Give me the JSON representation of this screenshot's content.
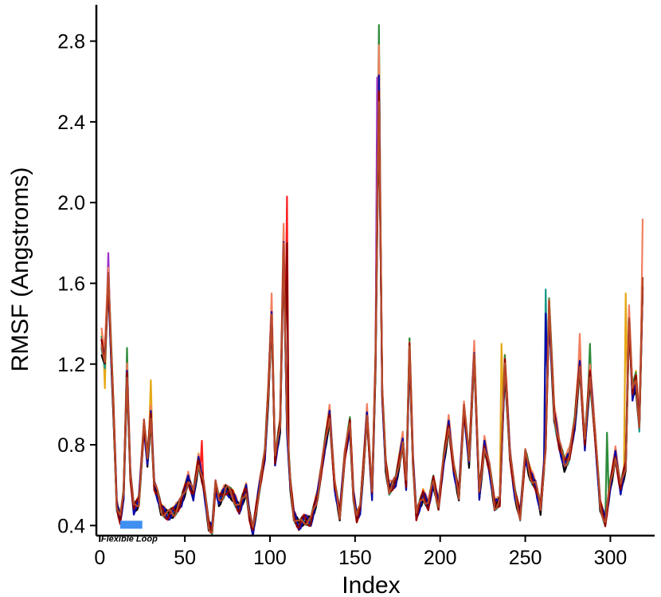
{
  "chart_data": {
    "type": "line",
    "title": "",
    "xlabel": "Index",
    "ylabel": "RMSF (Angstroms)",
    "xlim": [
      -2,
      326
    ],
    "ylim": [
      0.35,
      2.98
    ],
    "x_ticks": [
      0,
      50,
      100,
      150,
      200,
      250,
      300
    ],
    "x_tick_labels": [
      "0",
      "50",
      "100",
      "150",
      "200",
      "250",
      "300"
    ],
    "y_ticks": [
      0.4,
      0.8,
      1.2,
      1.6,
      2.0,
      2.4,
      2.8
    ],
    "y_tick_labels": [
      "0.4",
      "0.8",
      "1.2",
      "1.6",
      "2.0",
      "2.4",
      "2.8"
    ],
    "grid": false,
    "legend": "none",
    "annotation": {
      "text": "Flexible Loop",
      "x_range": [
        12,
        25
      ],
      "y": 0.4,
      "color": "#3f8ff0"
    },
    "base_profile": {
      "x": [
        1,
        3,
        5,
        8,
        10,
        12,
        14,
        16,
        18,
        20,
        23,
        26,
        28,
        30,
        32,
        34,
        36,
        40,
        44,
        48,
        52,
        55,
        58,
        61,
        64,
        66,
        68,
        70,
        74,
        78,
        82,
        86,
        88,
        90,
        94,
        97,
        99,
        101,
        103,
        106,
        108,
        110,
        112,
        114,
        117,
        120,
        124,
        128,
        132,
        135,
        138,
        141,
        144,
        147,
        149,
        151,
        153,
        155,
        157,
        160,
        162,
        164,
        166,
        168,
        170,
        174,
        178,
        180,
        182,
        184,
        186,
        190,
        193,
        196,
        199,
        202,
        205,
        208,
        211,
        214,
        217,
        220,
        223,
        226,
        229,
        232,
        235,
        238,
        241,
        244,
        247,
        250,
        253,
        256,
        259,
        262,
        264,
        267,
        270,
        273,
        276,
        279,
        282,
        285,
        288,
        291,
        294,
        297,
        300,
        303,
        306,
        309,
        311,
        313,
        315,
        317,
        319
      ],
      "y": [
        1.3,
        1.22,
        1.62,
        0.98,
        0.5,
        0.43,
        0.55,
        1.15,
        0.65,
        0.48,
        0.52,
        0.9,
        0.72,
        0.95,
        0.6,
        0.55,
        0.48,
        0.45,
        0.47,
        0.52,
        0.63,
        0.55,
        0.72,
        0.6,
        0.4,
        0.38,
        0.6,
        0.52,
        0.58,
        0.55,
        0.48,
        0.58,
        0.45,
        0.37,
        0.6,
        0.75,
        1.05,
        1.45,
        0.72,
        0.9,
        1.8,
        0.88,
        0.6,
        0.45,
        0.4,
        0.43,
        0.42,
        0.55,
        0.78,
        0.95,
        0.6,
        0.45,
        0.75,
        0.9,
        0.55,
        0.44,
        0.48,
        0.7,
        0.95,
        0.55,
        1.2,
        2.55,
        1.05,
        0.7,
        0.58,
        0.62,
        0.82,
        0.6,
        1.28,
        0.72,
        0.45,
        0.55,
        0.5,
        0.62,
        0.5,
        0.72,
        0.9,
        0.68,
        0.55,
        0.98,
        0.72,
        1.25,
        0.55,
        0.8,
        0.68,
        0.5,
        0.52,
        1.2,
        0.75,
        0.55,
        0.45,
        0.75,
        0.65,
        0.6,
        0.48,
        0.8,
        1.48,
        0.95,
        0.8,
        0.7,
        0.75,
        0.9,
        1.2,
        0.8,
        1.15,
        0.85,
        0.5,
        0.42,
        0.6,
        0.75,
        0.58,
        0.7,
        1.42,
        1.05,
        1.12,
        0.9,
        1.6
      ]
    },
    "series": [
      {
        "color": "#e6a817",
        "amp": 1.04,
        "peaks": {
          "164": 2.8,
          "309": 1.55,
          "236": 1.3,
          "30": 1.12,
          "3": 1.08
        }
      },
      {
        "color": "#2e8b3a",
        "amp": 1.03,
        "peaks": {
          "164": 2.88,
          "16": 1.28,
          "288": 1.3,
          "298": 0.86
        }
      },
      {
        "color": "#9b30c8",
        "amp": 1.0,
        "peaks": {
          "5": 1.75,
          "163": 2.62
        }
      },
      {
        "color": "#f08060",
        "amp": 1.05,
        "peaks": {
          "164": 2.78,
          "319": 1.92,
          "101": 1.55,
          "1": 1.38,
          "282": 1.35
        }
      },
      {
        "color": "#ff2020",
        "amp": 1.0,
        "peaks": {
          "110": 2.03,
          "60": 0.82,
          "164": 2.45
        }
      },
      {
        "color": "#1a9a8a",
        "amp": 0.98,
        "peaks": {
          "262": 1.57,
          "164": 2.5
        }
      },
      {
        "color": "#000000",
        "amp": 0.97,
        "peaks": {
          "164": 2.45
        }
      },
      {
        "color": "#0a0aa8",
        "amp": 0.99,
        "peaks": {
          "164": 2.63,
          "262": 1.45
        }
      },
      {
        "color": "#8b0000",
        "amp": 1.0,
        "peaks": {
          "164": 2.55,
          "110": 1.8
        }
      },
      {
        "color": "#b84a2a",
        "amp": 1.01,
        "peaks": {
          "164": 2.5
        }
      }
    ]
  }
}
